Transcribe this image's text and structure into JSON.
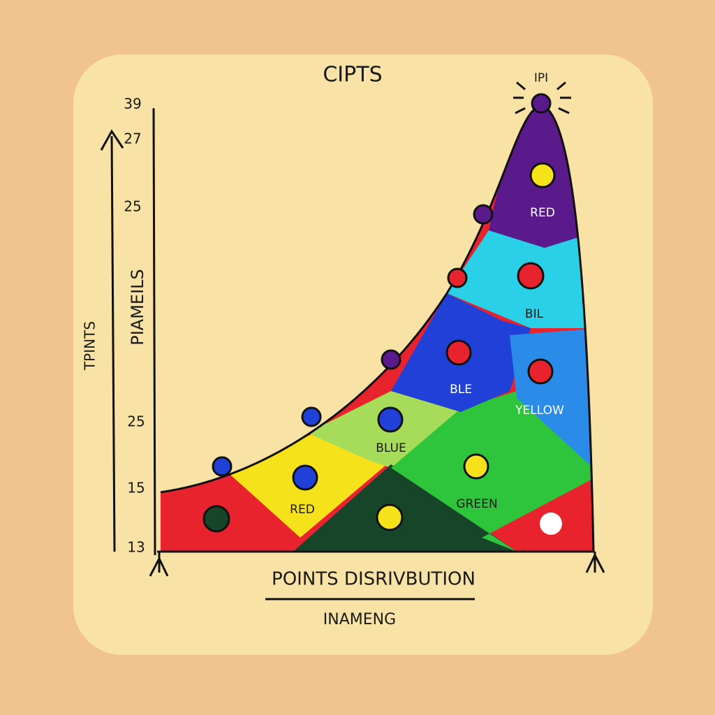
{
  "title": "CIPTS",
  "peak_label": "IPI",
  "y_tick_labels": [
    "39",
    "27",
    "25",
    "25",
    "15",
    "13"
  ],
  "y_axis_titles": [
    "TPINTS",
    "PIAMEILS"
  ],
  "x_axis_title": "POINTS DISRIVBUTION",
  "x_axis_subtitle": "INAMENG",
  "region_labels": [
    "RED",
    "BIL",
    "BLE",
    "YELLOW",
    "BLUE",
    "RED",
    "GREEN"
  ]
}
